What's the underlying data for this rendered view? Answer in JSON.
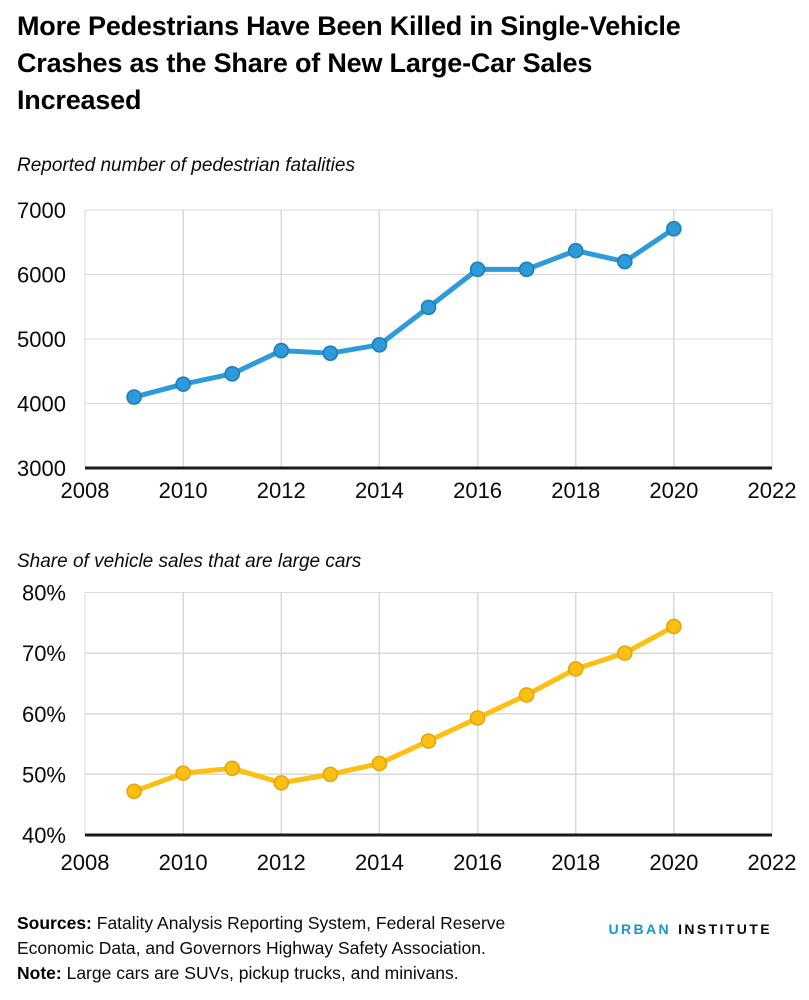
{
  "header": {
    "title_lines": [
      "More Pedestrians Have Been Killed in Single-Vehicle",
      "Crashes as the Share of New Large-Car Sales",
      "Increased"
    ]
  },
  "colors": {
    "blue_line": "#2D9BD9",
    "blue_marker_edge": "#1F7DB7",
    "yellow_line": "#FDBF11",
    "yellow_marker_edge": "#E2A70E",
    "gridline": "#D9D9D9",
    "axis": "#1A1A1A",
    "logo_blue": "#1696D2",
    "text": "#000000"
  },
  "chart_data": [
    {
      "type": "line",
      "title": "Reported number of pedestrian fatalities",
      "xlabel": "",
      "ylabel": "",
      "x": [
        2009,
        2010,
        2011,
        2012,
        2013,
        2014,
        2015,
        2016,
        2017,
        2018,
        2019,
        2020
      ],
      "series": [
        {
          "name": "Pedestrian fatalities",
          "values": [
            4100,
            4300,
            4460,
            4820,
            4780,
            4910,
            5490,
            6080,
            6080,
            6370,
            6200,
            6710
          ]
        }
      ],
      "xlim": [
        2008,
        2022
      ],
      "ylim": [
        3000,
        7000
      ],
      "x_ticks": [
        2008,
        2010,
        2012,
        2014,
        2016,
        2018,
        2020,
        2022
      ],
      "y_ticks": [
        3000,
        4000,
        5000,
        6000,
        7000
      ],
      "y_tick_labels": [
        "3000",
        "4000",
        "5000",
        "6000",
        "7000"
      ],
      "grid": true,
      "legend": "none",
      "line_color": "#2D9BD9",
      "marker_edge_color": "#1F7DB7"
    },
    {
      "type": "line",
      "title": "Share of vehicle sales that are large cars",
      "xlabel": "",
      "ylabel": "",
      "x": [
        2009,
        2010,
        2011,
        2012,
        2013,
        2014,
        2015,
        2016,
        2017,
        2018,
        2019,
        2020
      ],
      "series": [
        {
          "name": "Share of vehicle sales that are large cars",
          "values": [
            47.2,
            50.2,
            51.0,
            48.6,
            50.0,
            51.8,
            55.5,
            59.3,
            63.1,
            67.4,
            70.0,
            74.4
          ]
        }
      ],
      "xlim": [
        2008,
        2022
      ],
      "ylim": [
        40,
        80
      ],
      "x_ticks": [
        2008,
        2010,
        2012,
        2014,
        2016,
        2018,
        2020,
        2022
      ],
      "y_ticks": [
        40,
        50,
        60,
        70,
        80
      ],
      "y_tick_labels": [
        "40%",
        "50%",
        "60%",
        "70%",
        "80%"
      ],
      "grid": true,
      "legend": "none",
      "line_color": "#FDBF11",
      "marker_edge_color": "#E2A70E"
    }
  ],
  "footer": {
    "sources_label": "Sources:",
    "sources_text": " Fatality Analysis Reporting System, Federal Reserve Economic Data, and Governors Highway Safety Association.",
    "note_label": "Note:",
    "note_text": " Large cars are SUVs, pickup trucks, and minivans.",
    "logo_part1": "URBAN",
    "logo_part2": "INSTITUTE"
  }
}
